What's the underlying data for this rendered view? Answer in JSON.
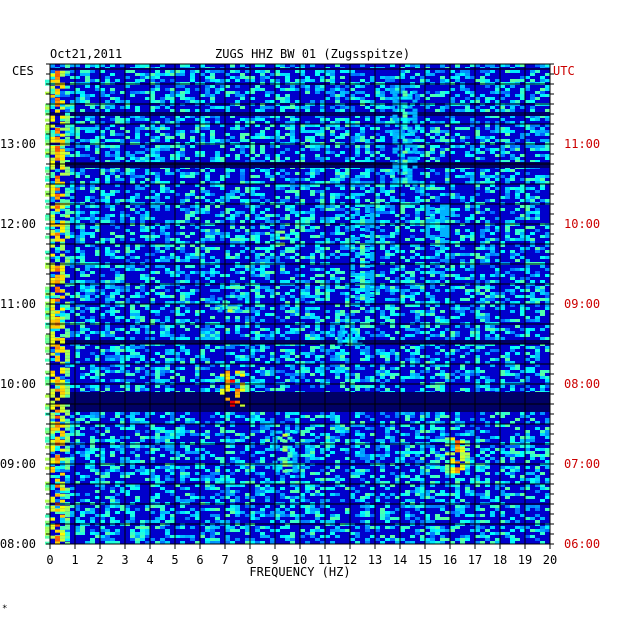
{
  "header": {
    "date": "Oct21,2011",
    "station": "ZUGS HHZ BW 01 (Zugsspitze)",
    "left_zone": "CES",
    "right_zone": "UTC"
  },
  "footer_mark": "*",
  "colors": {
    "background": "#0000cc",
    "grid": "#000000",
    "utc_text": "#cc0000"
  },
  "chart_data": {
    "type": "heatmap",
    "xlabel": "FREQUENCY (HZ)",
    "xlim": [
      0,
      20
    ],
    "x_ticks": [
      "0",
      "1",
      "2",
      "3",
      "4",
      "5",
      "6",
      "7",
      "8",
      "9",
      "10",
      "11",
      "12",
      "13",
      "14",
      "15",
      "16",
      "17",
      "18",
      "19",
      "20"
    ],
    "y_ticks_left": [
      "08:00",
      "09:00",
      "10:00",
      "11:00",
      "12:00",
      "13:00"
    ],
    "y_ticks_right": [
      "06:00",
      "07:00",
      "08:00",
      "09:00",
      "10:00",
      "11:00"
    ],
    "y_range_ces": [
      "08:00",
      "13:55"
    ],
    "colormap": "jet (blue = low, red = high)",
    "hot_spots": [
      {
        "f": 0.3,
        "t_start": "08:00",
        "t_end": "13:55",
        "level": 0.8
      },
      {
        "f": 7.3,
        "t_start": "09:45",
        "t_end": "10:10",
        "level": 0.9
      },
      {
        "f": 7.2,
        "t_start": "10:55",
        "t_end": "11:05",
        "level": 0.6
      },
      {
        "f": 9.4,
        "t_start": "08:55",
        "t_end": "09:25",
        "level": 0.6
      },
      {
        "f": 9.3,
        "t_start": "11:45",
        "t_end": "11:55",
        "level": 0.6
      },
      {
        "f": 12.0,
        "t_start": "10:30",
        "t_end": "10:40",
        "level": 0.5
      },
      {
        "f": 12.5,
        "t_start": "11:00",
        "t_end": "12:15",
        "level": 0.5
      },
      {
        "f": 16.3,
        "t_start": "08:55",
        "t_end": "09:20",
        "level": 0.8
      },
      {
        "f": 15.5,
        "t_start": "11:45",
        "t_end": "12:15",
        "level": 0.5
      },
      {
        "f": 14.2,
        "t_start": "12:30",
        "t_end": "13:40",
        "level": 0.5
      }
    ]
  }
}
